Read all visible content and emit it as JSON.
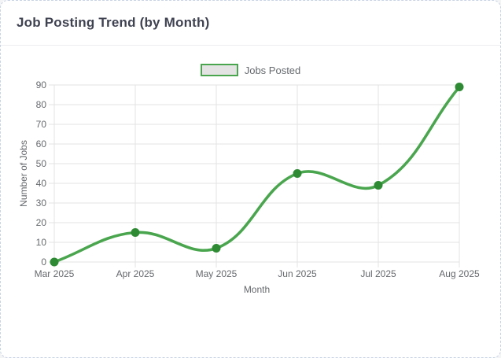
{
  "header": {
    "title": "Job Posting Trend (by Month)"
  },
  "colors": {
    "line": "#4aa64e",
    "point": "#2e8b33",
    "grid": "#e3e3e3",
    "tick_text": "#65686c",
    "title_text": "#3f4251",
    "legend_fill": "#e3e3e3",
    "card_border": "#c9d3e4",
    "header_border": "#ededf2"
  },
  "chart_data": {
    "type": "line",
    "title": "Job Posting Trend (by Month)",
    "x": [
      "Mar 2025",
      "Apr 2025",
      "May 2025",
      "Jun 2025",
      "Jul 2025",
      "Aug 2025"
    ],
    "series": [
      {
        "name": "Jobs Posted",
        "values": [
          0,
          15,
          7,
          45,
          39,
          89
        ]
      }
    ],
    "xlabel": "Month",
    "ylabel": "Number of Jobs",
    "ylim": [
      0,
      90
    ],
    "y_ticks": [
      0,
      10,
      20,
      30,
      40,
      50,
      60,
      70,
      80,
      90
    ],
    "grid": true,
    "legend_position": "top",
    "line_tension": 0.4
  }
}
